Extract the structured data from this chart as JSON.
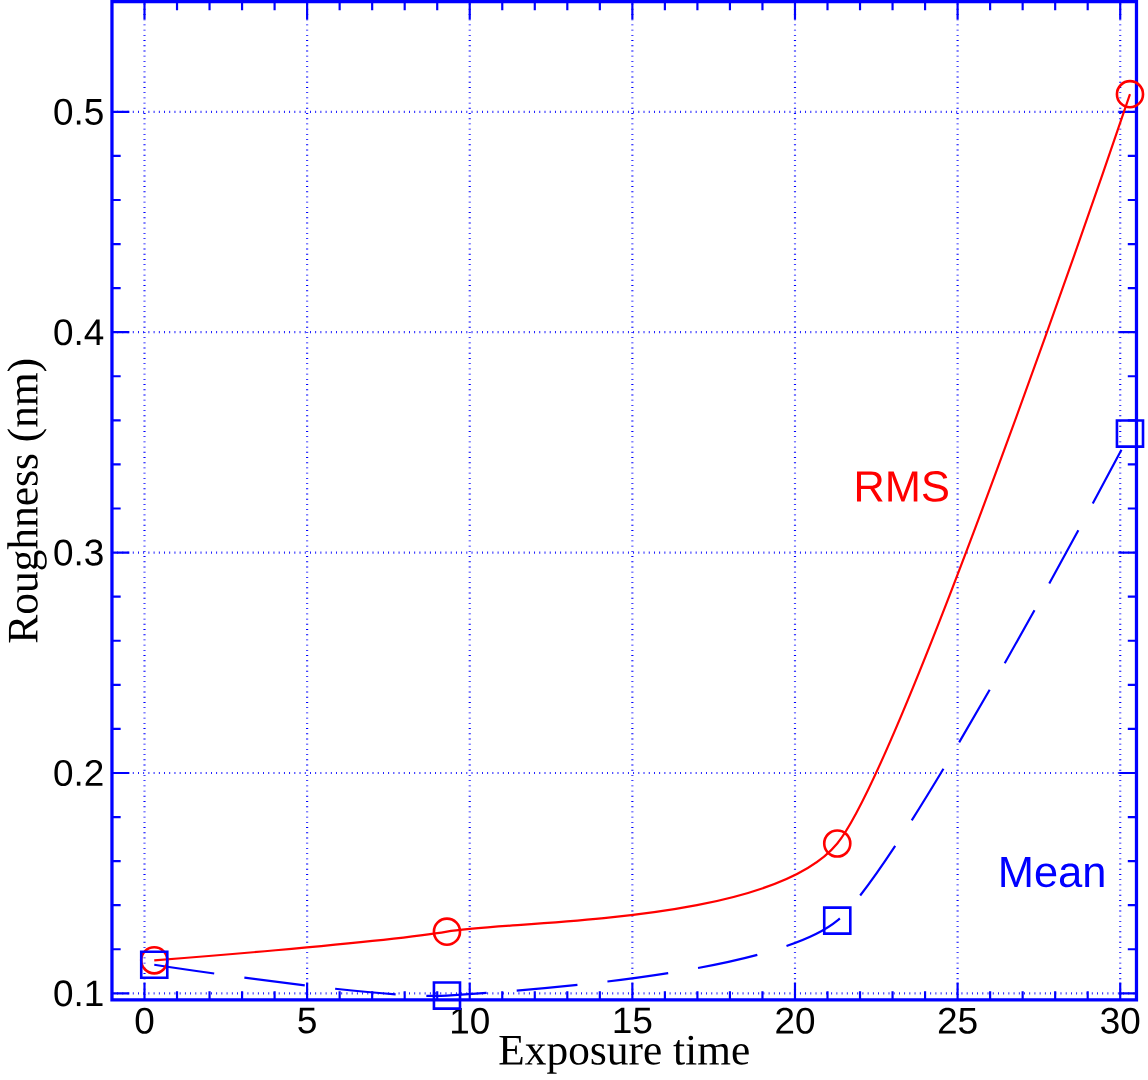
{
  "chart_data": {
    "type": "line",
    "xlabel": "Exposure time",
    "ylabel": "Roughness (nm)",
    "x": [
      0.3,
      9.3,
      21.3,
      30.3
    ],
    "series": [
      {
        "name": "RMS",
        "color": "#ff0000",
        "values": [
          0.115,
          0.128,
          0.168,
          0.508
        ],
        "marker": "circle",
        "line_style": "solid"
      },
      {
        "name": "Mean",
        "color": "#0000ff",
        "values": [
          0.113,
          0.099,
          0.133,
          0.354
        ],
        "marker": "square",
        "line_style": "dashed"
      }
    ],
    "xlim": [
      -1,
      30.5
    ],
    "ylim": [
      0.097,
      0.55
    ],
    "xticks": [
      0,
      5,
      10,
      15,
      20,
      25,
      30
    ],
    "yticks": [
      0.1,
      0.2,
      0.3,
      0.4,
      0.5
    ],
    "grid": true
  }
}
